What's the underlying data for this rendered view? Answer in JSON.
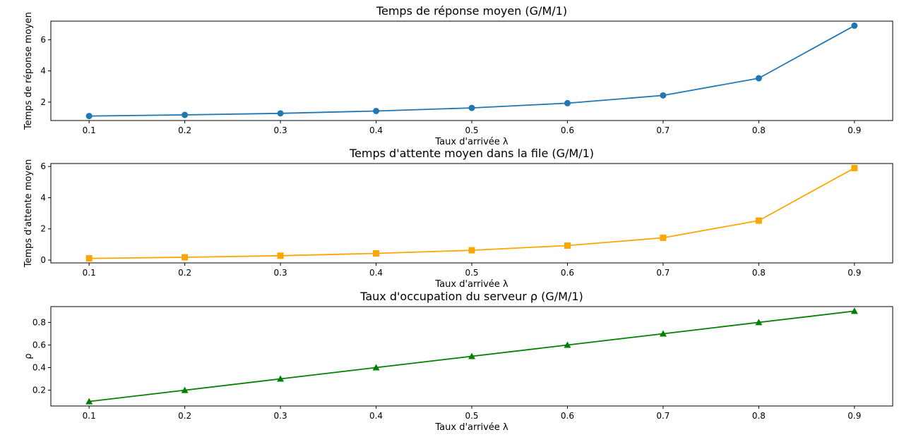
{
  "chart_data": [
    {
      "type": "line",
      "title": "Temps de réponse moyen (G/M/1)",
      "xlabel": "Taux d'arrivée λ",
      "ylabel": "Temps de réponse moyen",
      "x": [
        0.1,
        0.2,
        0.3,
        0.4,
        0.5,
        0.6,
        0.7,
        0.8,
        0.9
      ],
      "series": [
        {
          "values": [
            1.11,
            1.18,
            1.28,
            1.43,
            1.63,
            1.93,
            2.43,
            3.53,
            6.9
          ],
          "color": "#1f77b4",
          "marker": "circle"
        }
      ],
      "xticks": [
        "0.1",
        "0.2",
        "0.3",
        "0.4",
        "0.5",
        "0.6",
        "0.7",
        "0.8",
        "0.9"
      ],
      "yticks": [
        "2",
        "4",
        "6"
      ],
      "ytick_values": [
        2,
        4,
        6
      ],
      "ylim": [
        0.82,
        7.19
      ],
      "xlim": [
        0.06,
        0.94
      ],
      "grid": false
    },
    {
      "type": "line",
      "title": "Temps d'attente moyen dans la file (G/M/1)",
      "xlabel": "Taux d'arrivée λ",
      "ylabel": "Temps d'attente moyen",
      "x": [
        0.1,
        0.2,
        0.3,
        0.4,
        0.5,
        0.6,
        0.7,
        0.8,
        0.9
      ],
      "series": [
        {
          "values": [
            0.11,
            0.18,
            0.28,
            0.43,
            0.63,
            0.93,
            1.43,
            2.53,
            5.9
          ],
          "color": "#ffa500",
          "marker": "square"
        }
      ],
      "xticks": [
        "0.1",
        "0.2",
        "0.3",
        "0.4",
        "0.5",
        "0.6",
        "0.7",
        "0.8",
        "0.9"
      ],
      "yticks": [
        "0",
        "2",
        "4",
        "6"
      ],
      "ytick_values": [
        0,
        2,
        4,
        6
      ],
      "ylim": [
        -0.18,
        6.19
      ],
      "xlim": [
        0.06,
        0.94
      ],
      "grid": false
    },
    {
      "type": "line",
      "title": "Taux d'occupation du serveur ρ (G/M/1)",
      "xlabel": "Taux d'arrivée λ",
      "ylabel": "ρ",
      "x": [
        0.1,
        0.2,
        0.3,
        0.4,
        0.5,
        0.6,
        0.7,
        0.8,
        0.9
      ],
      "series": [
        {
          "values": [
            0.1,
            0.2,
            0.3,
            0.4,
            0.5,
            0.6,
            0.7,
            0.8,
            0.9
          ],
          "color": "#008000",
          "marker": "triangle"
        }
      ],
      "xticks": [
        "0.1",
        "0.2",
        "0.3",
        "0.4",
        "0.5",
        "0.6",
        "0.7",
        "0.8",
        "0.9"
      ],
      "yticks": [
        "0.2",
        "0.4",
        "0.6",
        "0.8"
      ],
      "ytick_values": [
        0.2,
        0.4,
        0.6,
        0.8
      ],
      "ylim": [
        0.06,
        0.94
      ],
      "xlim": [
        0.06,
        0.94
      ],
      "grid": false
    }
  ]
}
